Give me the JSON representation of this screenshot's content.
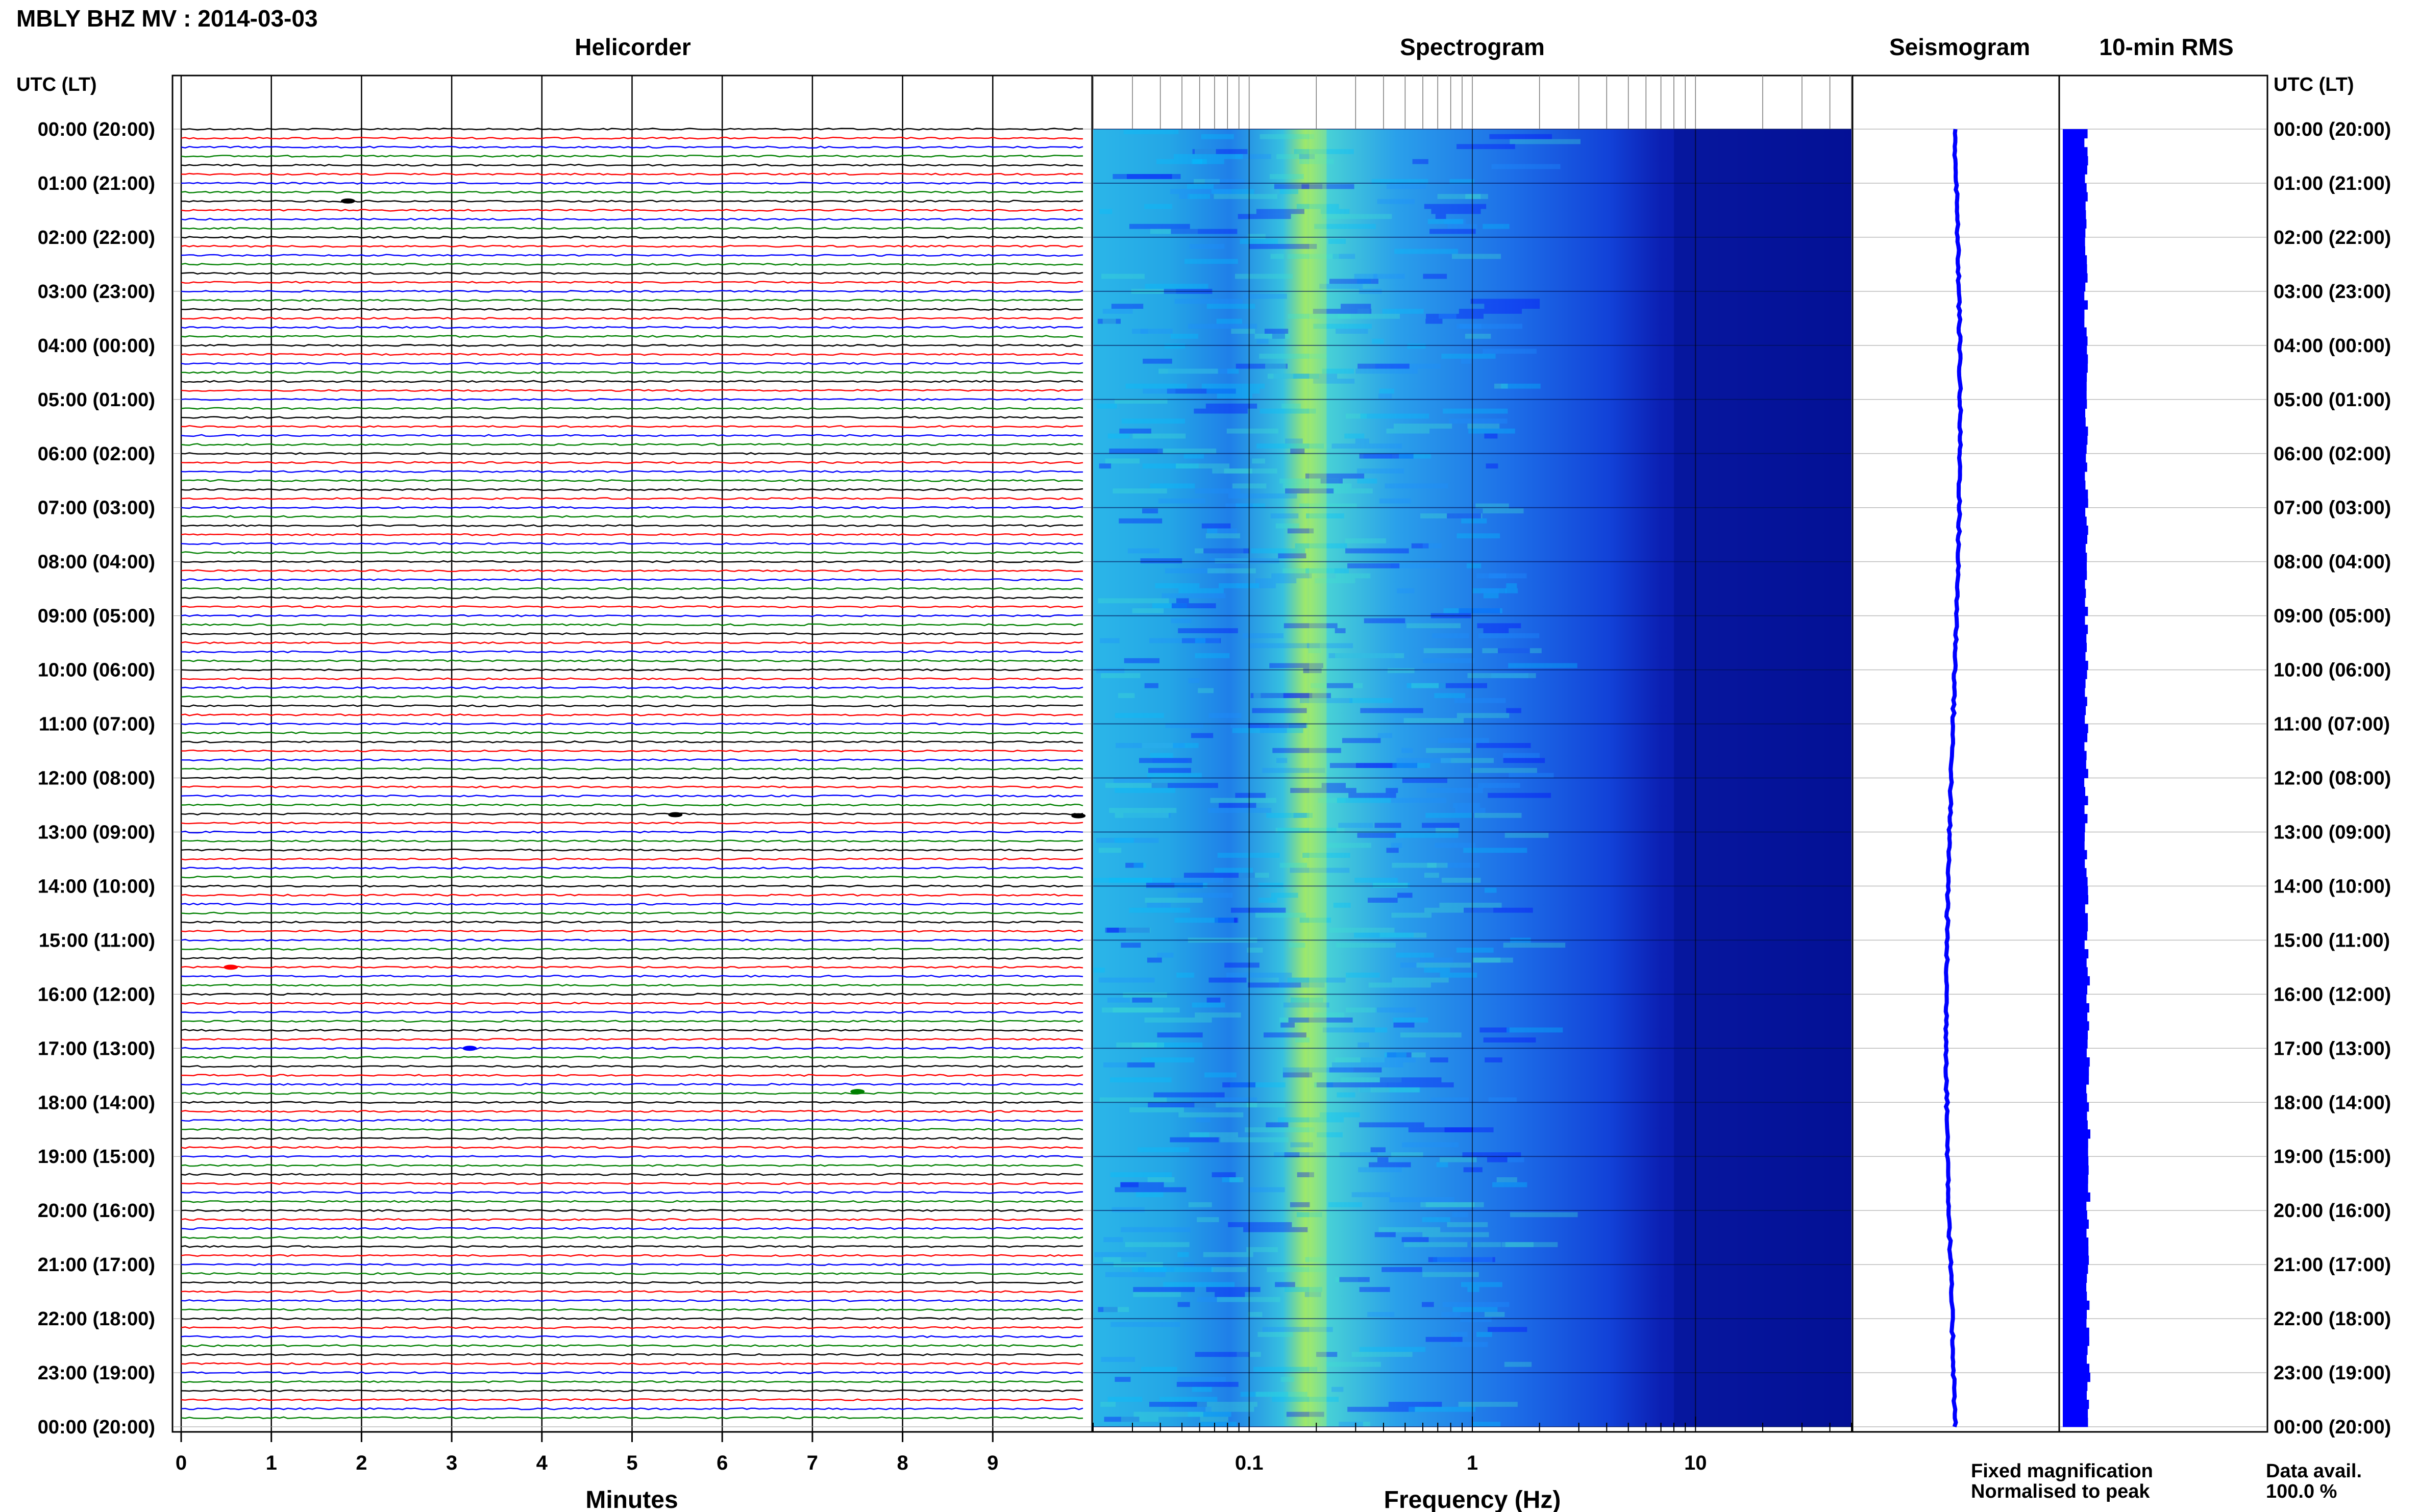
{
  "header": {
    "title": "MBLY BHZ MV : 2014-03-03",
    "left_axis_title": "UTC (LT)",
    "right_axis_title": "UTC (LT)"
  },
  "panels": {
    "helicorder": "Helicorder",
    "spectrogram": "Spectrogram",
    "seismogram": "Seismogram",
    "rms": "10-min RMS"
  },
  "axes": {
    "minutes_label": "Minutes",
    "frequency_label": "Frequency (Hz)"
  },
  "legend": {
    "fixed": "Fixed magnification",
    "normalised": "Normalised to peak",
    "fixed_color": "#0000ff",
    "normalised_color": "#ff0000"
  },
  "availability": {
    "label": "Data avail.",
    "value": "100.0 %"
  },
  "time_labels": [
    "00:00 (20:00)",
    "01:00 (21:00)",
    "02:00 (22:00)",
    "03:00 (23:00)",
    "04:00 (00:00)",
    "05:00 (01:00)",
    "06:00 (02:00)",
    "07:00 (03:00)",
    "08:00 (04:00)",
    "09:00 (05:00)",
    "10:00 (06:00)",
    "11:00 (07:00)",
    "12:00 (08:00)",
    "13:00 (09:00)",
    "14:00 (10:00)",
    "15:00 (11:00)",
    "16:00 (12:00)",
    "17:00 (13:00)",
    "18:00 (14:00)",
    "19:00 (15:00)",
    "20:00 (16:00)",
    "21:00 (17:00)",
    "22:00 (18:00)",
    "23:00 (19:00)",
    "00:00 (20:00)"
  ],
  "chart_data": [
    {
      "type": "line",
      "title": "Helicorder",
      "xlabel": "Minutes",
      "x_ticks": [
        "0",
        "1",
        "2",
        "3",
        "4",
        "5",
        "6",
        "7",
        "8",
        "9"
      ],
      "xlim": [
        0,
        10
      ],
      "trace_colors": [
        "#000000",
        "#ff0000",
        "#0000ff",
        "#008000"
      ],
      "traces_per_hour": 6,
      "hours": 24
    },
    {
      "type": "heatmap",
      "title": "Spectrogram",
      "xlabel": "Frequency (Hz)",
      "x_scale": "log",
      "xlim": [
        0.02,
        50
      ],
      "x_ticks": [
        "0.1",
        "1",
        "10"
      ],
      "colormap": [
        "#00008b",
        "#0000ff",
        "#1e90ff",
        "#00bfff",
        "#40e0d0",
        "#adff2f"
      ],
      "peak_frequency_hz": 0.2
    },
    {
      "type": "line",
      "title": "Seismogram",
      "color": "#0000ff"
    },
    {
      "type": "bar",
      "title": "10-min RMS",
      "color": "#0000ff"
    }
  ]
}
